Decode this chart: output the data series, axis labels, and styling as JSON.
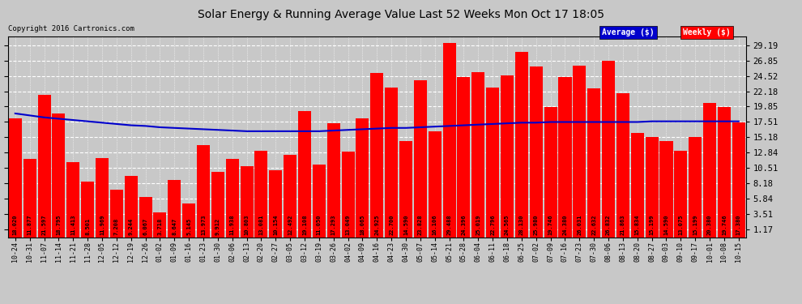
{
  "title": "Solar Energy & Running Average Value Last 52 Weeks Mon Oct 17 18:05",
  "copyright": "Copyright 2016 Cartronics.com",
  "bar_color": "#ff0000",
  "avg_line_color": "#0000cc",
  "bg_color": "#c8c8c8",
  "grid_color": "#ffffff",
  "yticks": [
    1.17,
    3.51,
    5.84,
    8.18,
    10.51,
    12.84,
    15.18,
    17.51,
    19.85,
    22.18,
    24.52,
    26.85,
    29.19
  ],
  "ylim": [
    0,
    30.5
  ],
  "categories": [
    "10-24",
    "10-31",
    "11-07",
    "11-14",
    "11-21",
    "11-28",
    "12-05",
    "12-12",
    "12-19",
    "12-26",
    "01-02",
    "01-09",
    "01-16",
    "01-23",
    "01-30",
    "02-06",
    "02-13",
    "02-20",
    "02-27",
    "03-05",
    "03-12",
    "03-19",
    "03-26",
    "04-02",
    "04-09",
    "04-16",
    "04-23",
    "04-30",
    "05-07",
    "05-14",
    "05-21",
    "05-28",
    "06-04",
    "06-11",
    "06-18",
    "06-25",
    "07-02",
    "07-09",
    "07-16",
    "07-23",
    "07-30",
    "08-06",
    "08-13",
    "08-20",
    "08-27",
    "09-03",
    "09-10",
    "09-17",
    "10-01",
    "10-08",
    "10-15"
  ],
  "values": [
    18.02,
    11.877,
    21.597,
    18.795,
    11.413,
    8.501,
    11.969,
    7.208,
    9.244,
    6.067,
    3.718,
    8.647,
    5.145,
    13.973,
    9.912,
    11.938,
    10.803,
    13.081,
    10.154,
    12.492,
    19.108,
    11.05,
    17.293,
    13.049,
    18.065,
    24.925,
    22.7,
    14.59,
    23.828,
    16.106,
    29.488,
    24.396,
    25.019,
    22.796,
    24.565,
    28.13,
    25.98,
    19.746,
    24.38,
    26.031,
    22.632,
    26.832,
    21.863,
    15.834,
    15.199,
    14.59,
    13.075,
    15.199,
    20.38,
    19.746,
    17.38
  ],
  "avg_values": [
    18.8,
    18.5,
    18.2,
    18.0,
    17.8,
    17.6,
    17.4,
    17.2,
    17.0,
    16.9,
    16.7,
    16.6,
    16.5,
    16.4,
    16.3,
    16.2,
    16.1,
    16.1,
    16.1,
    16.1,
    16.1,
    16.1,
    16.2,
    16.3,
    16.4,
    16.5,
    16.6,
    16.6,
    16.7,
    16.8,
    16.9,
    17.0,
    17.1,
    17.2,
    17.3,
    17.4,
    17.4,
    17.5,
    17.5,
    17.5,
    17.5,
    17.5,
    17.5,
    17.5,
    17.6,
    17.6,
    17.6,
    17.6,
    17.6,
    17.6,
    17.6
  ],
  "legend_avg_bg": "#0000cc",
  "legend_weekly_bg": "#ff0000",
  "figsize": [
    9.9,
    3.75
  ],
  "dpi": 100
}
